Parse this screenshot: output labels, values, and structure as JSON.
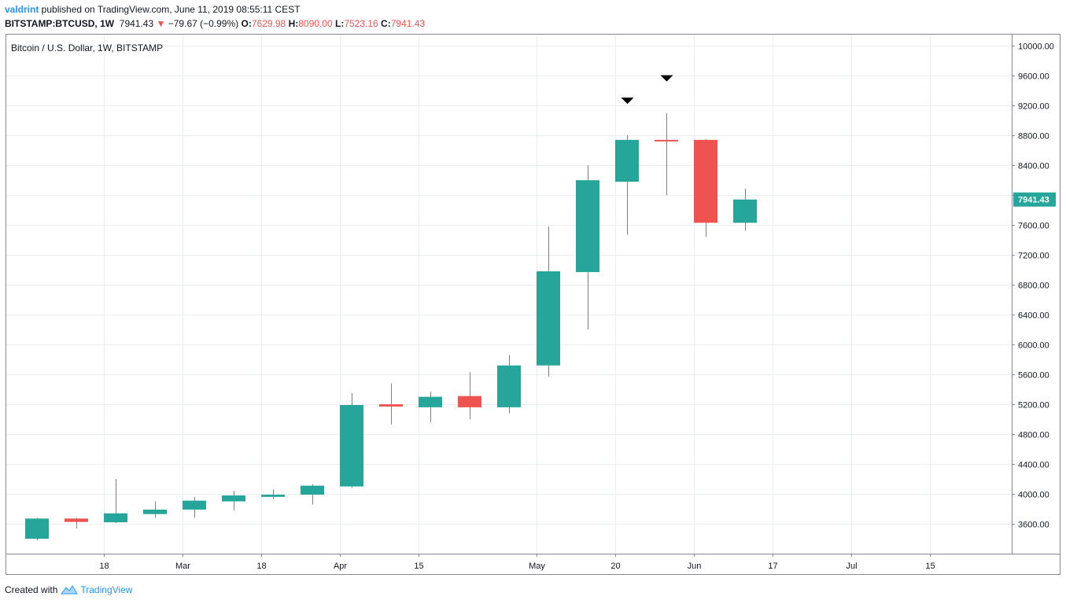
{
  "header": {
    "author": "valdrint",
    "published_text": " published on TradingView.com, June 11, 2019 08:55:11 CEST",
    "symbol": "BITSTAMP:BTCUSD, 1W",
    "last_price": "7941.43",
    "change": "−79.67 (−0.99%)",
    "open_label": "O:",
    "open_value": "7629.98",
    "high_label": "H:",
    "high_value": "8090.00",
    "low_label": "L:",
    "low_value": "7523.16",
    "close_label": "C:",
    "close_value": "7941.43"
  },
  "colors": {
    "up": "#26a69a",
    "down": "#ef5350",
    "grid": "#e9eef3",
    "axis": "#868993",
    "marker": "#000000"
  },
  "footer": {
    "created_with": "Created with",
    "brand": "TradingView",
    "icon": "tradingview-logo-icon"
  },
  "chart_data": {
    "type": "candlestick",
    "title": "Bitcoin / U.S. Dollar, 1W, BITSTAMP",
    "ylim": [
      3200,
      10160
    ],
    "y_ticks": [
      "10000.00",
      "9600.00",
      "9200.00",
      "8800.00",
      "8400.00",
      "8000.00",
      "7600.00",
      "7200.00",
      "6800.00",
      "6400.00",
      "6000.00",
      "5600.00",
      "5200.00",
      "4800.00",
      "4400.00",
      "4000.00",
      "3600.00"
    ],
    "y_tick_values": [
      10000,
      9600,
      9200,
      8800,
      8400,
      8000,
      7600,
      7200,
      6800,
      6400,
      6000,
      5600,
      5200,
      4800,
      4400,
      4000,
      3600
    ],
    "x_ticks": [
      {
        "label": "18",
        "index": 1.7
      },
      {
        "label": "Mar",
        "index": 3.7
      },
      {
        "label": "18",
        "index": 5.7
      },
      {
        "label": "Apr",
        "index": 7.7
      },
      {
        "label": "15",
        "index": 9.7
      },
      {
        "label": "May",
        "index": 12.7
      },
      {
        "label": "20",
        "index": 14.7
      },
      {
        "label": "Jun",
        "index": 16.7
      },
      {
        "label": "17",
        "index": 18.7
      },
      {
        "label": "Jul",
        "index": 20.7
      },
      {
        "label": "15",
        "index": 22.7
      }
    ],
    "candles": [
      {
        "o": 3400,
        "h": 3680,
        "l": 3380,
        "c": 3670
      },
      {
        "o": 3670,
        "h": 3680,
        "l": 3540,
        "c": 3625
      },
      {
        "o": 3620,
        "h": 4200,
        "l": 3610,
        "c": 3740
      },
      {
        "o": 3730,
        "h": 3900,
        "l": 3680,
        "c": 3790
      },
      {
        "o": 3790,
        "h": 3960,
        "l": 3680,
        "c": 3910
      },
      {
        "o": 3900,
        "h": 4040,
        "l": 3780,
        "c": 3980
      },
      {
        "o": 3960,
        "h": 4060,
        "l": 3930,
        "c": 3990
      },
      {
        "o": 3990,
        "h": 4130,
        "l": 3860,
        "c": 4110
      },
      {
        "o": 4100,
        "h": 5350,
        "l": 4080,
        "c": 5190
      },
      {
        "o": 5200,
        "h": 5480,
        "l": 4930,
        "c": 5170
      },
      {
        "o": 5160,
        "h": 5370,
        "l": 4960,
        "c": 5300
      },
      {
        "o": 5310,
        "h": 5630,
        "l": 5000,
        "c": 5160
      },
      {
        "o": 5160,
        "h": 5860,
        "l": 5080,
        "c": 5720
      },
      {
        "o": 5720,
        "h": 7580,
        "l": 5570,
        "c": 6980
      },
      {
        "o": 6970,
        "h": 8400,
        "l": 6200,
        "c": 8200
      },
      {
        "o": 8180,
        "h": 8800,
        "l": 7470,
        "c": 8740
      },
      {
        "o": 8740,
        "h": 9100,
        "l": 8000,
        "c": 8730
      },
      {
        "o": 8740,
        "h": 8750,
        "l": 7440,
        "c": 7630
      },
      {
        "o": 7629.98,
        "h": 8090,
        "l": 7523.16,
        "c": 7941.43
      }
    ],
    "markers": [
      {
        "index": 15,
        "position": "above"
      },
      {
        "index": 16,
        "position": "above"
      }
    ],
    "last_price_label": "7941.43"
  }
}
